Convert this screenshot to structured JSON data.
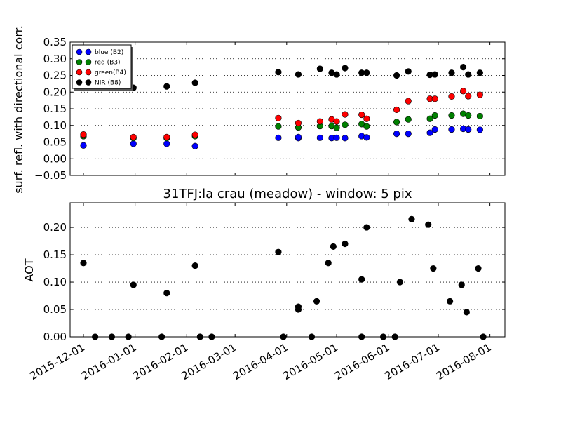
{
  "figure": {
    "width": 800,
    "height": 600
  },
  "chart_data": [
    {
      "type": "scatter",
      "title": "",
      "xlabel": "",
      "ylabel": "surf. refl. with directional corr.",
      "ylim": [
        -0.05,
        0.35
      ],
      "yticks": [
        "−0.05",
        "0.00",
        "0.05",
        "0.10",
        "0.15",
        "0.20",
        "0.25",
        "0.30",
        "0.35"
      ],
      "ytick_values": [
        -0.05,
        0.0,
        0.05,
        0.1,
        0.15,
        0.2,
        0.25,
        0.3,
        0.35
      ],
      "xlim": [
        "2015-11-23",
        "2016-08-10"
      ],
      "grid": "y-dotted",
      "legend": "top-left",
      "series": [
        {
          "name": "blue (B2)",
          "color": "#0000ff",
          "points": [
            [
              "2015-12-01",
              0.04
            ],
            [
              "2015-12-31",
              0.045
            ],
            [
              "2016-01-20",
              0.045
            ],
            [
              "2016-02-06",
              0.038
            ],
            [
              "2016-03-27",
              0.063
            ],
            [
              "2016-04-08",
              0.062
            ],
            [
              "2016-04-08",
              0.065
            ],
            [
              "2016-04-21",
              0.063
            ],
            [
              "2016-04-28",
              0.062
            ],
            [
              "2016-05-01",
              0.063
            ],
            [
              "2016-05-06",
              0.062
            ],
            [
              "2016-05-16",
              0.068
            ],
            [
              "2016-05-19",
              0.064
            ],
            [
              "2016-06-06",
              0.075
            ],
            [
              "2016-06-13",
              0.075
            ],
            [
              "2016-06-26",
              0.078
            ],
            [
              "2016-06-29",
              0.088
            ],
            [
              "2016-07-09",
              0.088
            ],
            [
              "2016-07-16",
              0.09
            ],
            [
              "2016-07-19",
              0.088
            ],
            [
              "2016-07-26",
              0.087
            ]
          ]
        },
        {
          "name": "red  (B3)",
          "color": "#008000",
          "points": [
            [
              "2015-12-01",
              0.068
            ],
            [
              "2015-12-31",
              0.062
            ],
            [
              "2016-01-20",
              0.062
            ],
            [
              "2016-02-06",
              0.068
            ],
            [
              "2016-03-27",
              0.097
            ],
            [
              "2016-04-08",
              0.094
            ],
            [
              "2016-04-21",
              0.098
            ],
            [
              "2016-04-28",
              0.098
            ],
            [
              "2016-05-01",
              0.093
            ],
            [
              "2016-05-06",
              0.102
            ],
            [
              "2016-05-16",
              0.104
            ],
            [
              "2016-05-19",
              0.097
            ],
            [
              "2016-06-06",
              0.11
            ],
            [
              "2016-06-13",
              0.118
            ],
            [
              "2016-06-26",
              0.12
            ],
            [
              "2016-06-29",
              0.13
            ],
            [
              "2016-07-09",
              0.13
            ],
            [
              "2016-07-16",
              0.135
            ],
            [
              "2016-07-19",
              0.13
            ],
            [
              "2016-07-26",
              0.128
            ]
          ]
        },
        {
          "name": "green(B4)",
          "color": "#ff0000",
          "points": [
            [
              "2015-12-01",
              0.073
            ],
            [
              "2015-12-31",
              0.065
            ],
            [
              "2016-01-20",
              0.065
            ],
            [
              "2016-02-06",
              0.072
            ],
            [
              "2016-03-27",
              0.122
            ],
            [
              "2016-04-08",
              0.107
            ],
            [
              "2016-04-21",
              0.112
            ],
            [
              "2016-04-28",
              0.118
            ],
            [
              "2016-05-01",
              0.112
            ],
            [
              "2016-05-06",
              0.133
            ],
            [
              "2016-05-16",
              0.132
            ],
            [
              "2016-05-19",
              0.12
            ],
            [
              "2016-06-06",
              0.147
            ],
            [
              "2016-06-13",
              0.173
            ],
            [
              "2016-06-26",
              0.18
            ],
            [
              "2016-06-29",
              0.18
            ],
            [
              "2016-07-09",
              0.187
            ],
            [
              "2016-07-16",
              0.203
            ],
            [
              "2016-07-19",
              0.188
            ],
            [
              "2016-07-26",
              0.192
            ]
          ]
        },
        {
          "name": "NIR  (B8)",
          "color": "#000000",
          "points": [
            [
              "2015-12-01",
              0.212
            ],
            [
              "2015-12-31",
              0.213
            ],
            [
              "2016-01-20",
              0.217
            ],
            [
              "2016-02-06",
              0.228
            ],
            [
              "2016-03-27",
              0.26
            ],
            [
              "2016-04-08",
              0.253
            ],
            [
              "2016-04-21",
              0.27
            ],
            [
              "2016-04-28",
              0.258
            ],
            [
              "2016-05-01",
              0.253
            ],
            [
              "2016-05-06",
              0.272
            ],
            [
              "2016-05-16",
              0.258
            ],
            [
              "2016-05-19",
              0.258
            ],
            [
              "2016-06-06",
              0.25
            ],
            [
              "2016-06-13",
              0.262
            ],
            [
              "2016-06-26",
              0.252
            ],
            [
              "2016-06-29",
              0.253
            ],
            [
              "2016-07-09",
              0.258
            ],
            [
              "2016-07-16",
              0.275
            ],
            [
              "2016-07-19",
              0.253
            ],
            [
              "2016-07-26",
              0.258
            ]
          ]
        }
      ]
    },
    {
      "type": "scatter",
      "title": "31TFJ:la crau (meadow) - window: 5 pix",
      "xlabel": "",
      "ylabel": "AOT",
      "ylim": [
        0.0,
        0.245
      ],
      "yticks": [
        "0.00",
        "0.05",
        "0.10",
        "0.15",
        "0.20"
      ],
      "ytick_values": [
        0.0,
        0.05,
        0.1,
        0.15,
        0.2
      ],
      "xlim": [
        "2015-11-23",
        "2016-08-10"
      ],
      "xticks": [
        "2015-12-01",
        "2016-01-01",
        "2016-02-01",
        "2016-03-01",
        "2016-04-01",
        "2016-05-01",
        "2016-06-01",
        "2016-07-01",
        "2016-08-01"
      ],
      "grid": "y-dotted",
      "legend": "none",
      "series": [
        {
          "name": "",
          "color": "#000000",
          "points": [
            [
              "2015-12-01",
              0.135
            ],
            [
              "2015-12-08",
              0.0
            ],
            [
              "2015-12-18",
              0.0
            ],
            [
              "2015-12-28",
              0.0
            ],
            [
              "2015-12-31",
              0.095
            ],
            [
              "2016-01-17",
              0.0
            ],
            [
              "2016-01-20",
              0.08
            ],
            [
              "2016-02-06",
              0.13
            ],
            [
              "2016-02-09",
              0.0
            ],
            [
              "2016-02-16",
              0.0
            ],
            [
              "2016-03-27",
              0.155
            ],
            [
              "2016-03-30",
              0.0
            ],
            [
              "2016-04-08",
              0.05
            ],
            [
              "2016-04-08",
              0.055
            ],
            [
              "2016-04-16",
              0.0
            ],
            [
              "2016-04-19",
              0.065
            ],
            [
              "2016-04-26",
              0.135
            ],
            [
              "2016-04-29",
              0.165
            ],
            [
              "2016-05-06",
              0.17
            ],
            [
              "2016-05-16",
              0.0
            ],
            [
              "2016-05-16",
              0.105
            ],
            [
              "2016-05-19",
              0.2
            ],
            [
              "2016-05-29",
              0.0
            ],
            [
              "2016-06-05",
              0.0
            ],
            [
              "2016-06-08",
              0.1
            ],
            [
              "2016-06-15",
              0.215
            ],
            [
              "2016-06-25",
              0.205
            ],
            [
              "2016-06-28",
              0.125
            ],
            [
              "2016-07-08",
              0.065
            ],
            [
              "2016-07-15",
              0.095
            ],
            [
              "2016-07-18",
              0.045
            ],
            [
              "2016-07-25",
              0.125
            ],
            [
              "2016-07-28",
              0.0
            ]
          ]
        }
      ]
    }
  ]
}
